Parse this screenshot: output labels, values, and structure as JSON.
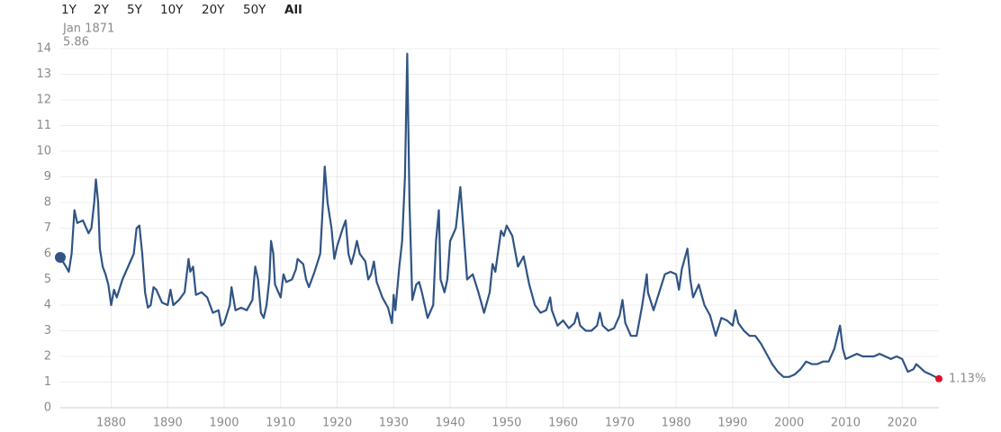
{
  "chart_data": {
    "type": "line",
    "range_buttons": [
      "1Y",
      "2Y",
      "5Y",
      "10Y",
      "20Y",
      "50Y",
      "All"
    ],
    "active_range": 6,
    "start_label": "Jan 1871",
    "end_value_label": "1.13%",
    "xlim": [
      1871,
      2026.5
    ],
    "xticks": [
      1880,
      1890,
      1900,
      1910,
      1920,
      1930,
      1940,
      1950,
      1960,
      1970,
      1980,
      1990,
      2000,
      2010,
      2020
    ],
    "ylim": [
      0,
      14
    ],
    "yticks": [
      0,
      1,
      2,
      3,
      4,
      5,
      6,
      7,
      8,
      9,
      10,
      11,
      12,
      13,
      14
    ],
    "grid": true,
    "series": [
      {
        "color": "#2f5485",
        "x": [
          1871,
          1872,
          1872.5,
          1873,
          1873.5,
          1874,
          1875,
          1876,
          1876.5,
          1877,
          1877.3,
          1877.7,
          1878,
          1878.5,
          1879,
          1879.5,
          1880,
          1880.5,
          1881,
          1882,
          1883,
          1884,
          1884.5,
          1885,
          1885.5,
          1886,
          1886.5,
          1887,
          1887.5,
          1888,
          1889,
          1890,
          1890.5,
          1891,
          1892,
          1893,
          1893.7,
          1894,
          1894.5,
          1895,
          1896,
          1897,
          1898,
          1899,
          1899.5,
          1900,
          1901,
          1901.3,
          1902,
          1903,
          1904,
          1905,
          1905.5,
          1906,
          1906.5,
          1907,
          1907.5,
          1908,
          1908.3,
          1908.7,
          1909,
          1910,
          1910.5,
          1911,
          1912,
          1912.7,
          1913,
          1914,
          1914.5,
          1915,
          1916,
          1917,
          1917.5,
          1917.8,
          1918.3,
          1919,
          1919.5,
          1920,
          1921,
          1921.5,
          1922,
          1922.5,
          1923,
          1923.5,
          1924,
          1925,
          1925.5,
          1926,
          1926.5,
          1927,
          1928,
          1929,
          1929.7,
          1930,
          1930.3,
          1931,
          1931.5,
          1932,
          1932.4,
          1932.8,
          1933,
          1933.3,
          1934,
          1934.5,
          1935,
          1936,
          1937,
          1937.5,
          1938,
          1938.3,
          1939,
          1939.5,
          1940,
          1941,
          1941.8,
          1942.5,
          1943,
          1944,
          1945,
          1946,
          1947,
          1947.5,
          1948,
          1949,
          1949.5,
          1950,
          1951,
          1952,
          1953,
          1954,
          1955,
          1956,
          1957,
          1957.7,
          1958,
          1959,
          1960,
          1961,
          1962,
          1962.5,
          1963,
          1964,
          1965,
          1966,
          1966.5,
          1967,
          1968,
          1969,
          1970,
          1970.5,
          1971,
          1972,
          1973,
          1974,
          1974.8,
          1975,
          1976,
          1977,
          1978,
          1979,
          1980,
          1980.5,
          1981,
          1982,
          1982.5,
          1983,
          1984,
          1985,
          1986,
          1987,
          1988,
          1989,
          1990,
          1990.5,
          1991,
          1992,
          1993,
          1994,
          1995,
          1996,
          1997,
          1998,
          1999,
          2000,
          2001,
          2002,
          2003,
          2004,
          2005,
          2006,
          2007,
          2008,
          2009,
          2009.5,
          2010,
          2011,
          2012,
          2013,
          2014,
          2015,
          2016,
          2017,
          2018,
          2019,
          2020,
          2021,
          2022,
          2022.5,
          2023,
          2024,
          2025,
          2026.5
        ],
        "values": [
          5.86,
          5.5,
          5.3,
          6.0,
          7.7,
          7.2,
          7.3,
          6.8,
          7.0,
          8.0,
          8.9,
          8.0,
          6.2,
          5.5,
          5.2,
          4.8,
          4.0,
          4.6,
          4.3,
          5.0,
          5.5,
          6.0,
          7.0,
          7.1,
          6.0,
          4.5,
          3.9,
          4.0,
          4.7,
          4.6,
          4.1,
          4.0,
          4.6,
          4.0,
          4.2,
          4.5,
          5.8,
          5.3,
          5.5,
          4.4,
          4.5,
          4.3,
          3.7,
          3.8,
          3.2,
          3.3,
          4.0,
          4.7,
          3.8,
          3.9,
          3.8,
          4.2,
          5.5,
          5.0,
          3.7,
          3.5,
          4.0,
          5.0,
          6.5,
          6.0,
          4.8,
          4.3,
          5.2,
          4.9,
          5.0,
          5.4,
          5.8,
          5.6,
          5.0,
          4.7,
          5.3,
          6.0,
          8.0,
          9.4,
          8.0,
          7.0,
          5.8,
          6.3,
          7.0,
          7.3,
          6.0,
          5.6,
          6.0,
          6.5,
          6.0,
          5.7,
          5.0,
          5.2,
          5.7,
          4.9,
          4.3,
          3.9,
          3.3,
          4.4,
          3.8,
          5.5,
          6.5,
          9.0,
          13.8,
          8.0,
          6.5,
          4.2,
          4.8,
          4.9,
          4.5,
          3.5,
          4.0,
          6.5,
          7.7,
          5.0,
          4.5,
          5.0,
          6.5,
          7.0,
          8.6,
          6.5,
          5.0,
          5.2,
          4.5,
          3.7,
          4.5,
          5.6,
          5.3,
          6.9,
          6.7,
          7.1,
          6.7,
          5.5,
          5.9,
          4.8,
          4.0,
          3.7,
          3.8,
          4.3,
          3.8,
          3.2,
          3.4,
          3.1,
          3.3,
          3.7,
          3.2,
          3.0,
          3.0,
          3.2,
          3.7,
          3.2,
          3.0,
          3.1,
          3.6,
          4.2,
          3.3,
          2.8,
          2.8,
          4.0,
          5.2,
          4.5,
          3.8,
          4.5,
          5.2,
          5.3,
          5.2,
          4.6,
          5.4,
          6.2,
          5.0,
          4.3,
          4.8,
          4.0,
          3.6,
          2.8,
          3.5,
          3.4,
          3.2,
          3.8,
          3.3,
          3.0,
          2.8,
          2.8,
          2.5,
          2.1,
          1.7,
          1.4,
          1.2,
          1.2,
          1.3,
          1.5,
          1.8,
          1.7,
          1.7,
          1.8,
          1.8,
          2.3,
          3.2,
          2.3,
          1.9,
          2.0,
          2.1,
          2.0,
          2.0,
          2.0,
          2.1,
          2.0,
          1.9,
          2.0,
          1.9,
          1.4,
          1.5,
          1.7,
          1.6,
          1.4,
          1.3,
          1.13
        ]
      }
    ]
  }
}
